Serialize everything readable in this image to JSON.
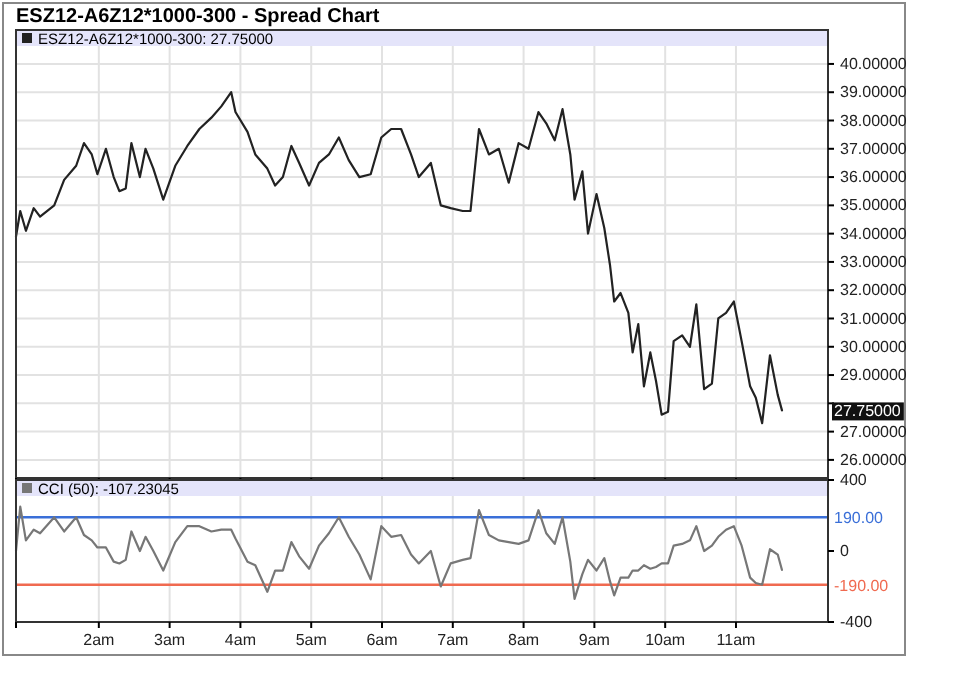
{
  "chart_data": [
    {
      "type": "line",
      "title": "ESZ12-A6Z12*1000-300 - Spread Chart",
      "x": [
        0.83,
        0.89,
        0.97,
        1.08,
        1.17,
        1.37,
        1.51,
        1.68,
        1.79,
        1.9,
        1.98,
        2.1,
        2.21,
        2.29,
        2.38,
        2.46,
        2.58,
        2.66,
        2.77,
        2.91,
        3.08,
        3.25,
        3.42,
        3.59,
        3.73,
        3.87,
        3.93,
        4.1,
        4.21,
        4.38,
        4.49,
        4.6,
        4.72,
        4.83,
        4.97,
        5.11,
        5.25,
        5.39,
        5.53,
        5.68,
        5.84,
        5.99,
        6.13,
        6.27,
        6.41,
        6.52,
        6.69,
        6.83,
        6.97,
        7.14,
        7.25,
        7.37,
        7.51,
        7.65,
        7.79,
        7.93,
        8.07,
        8.21,
        8.32,
        8.44,
        8.55,
        8.66,
        8.72,
        8.83,
        8.91,
        9.03,
        9.14,
        9.22,
        9.28,
        9.37,
        9.48,
        9.54,
        9.62,
        9.7,
        9.79,
        9.87,
        9.95,
        10.04,
        10.12,
        10.24,
        10.35,
        10.44,
        10.55,
        10.66,
        10.75,
        10.86,
        10.97,
        11.08,
        11.2,
        11.28,
        11.37,
        11.48,
        11.59,
        11.65
      ],
      "series": [
        {
          "name": "ESZ12-A6Z12*1000-300: 27.75000",
          "color": "#222222",
          "values": [
            33.9,
            34.8,
            34.1,
            34.9,
            34.6,
            35.0,
            35.9,
            36.4,
            37.2,
            36.8,
            36.1,
            37.0,
            36.0,
            35.5,
            35.6,
            37.2,
            36.0,
            37.0,
            36.3,
            35.2,
            36.4,
            37.1,
            37.7,
            38.1,
            38.5,
            39.0,
            38.3,
            37.6,
            36.8,
            36.3,
            35.7,
            36.0,
            37.1,
            36.5,
            35.7,
            36.5,
            36.8,
            37.4,
            36.6,
            36.0,
            36.1,
            37.4,
            37.7,
            37.7,
            36.8,
            36.0,
            36.5,
            35.0,
            34.9,
            34.8,
            34.8,
            37.7,
            36.8,
            37.0,
            35.8,
            37.2,
            37.0,
            38.3,
            37.9,
            37.3,
            38.4,
            36.8,
            35.2,
            36.2,
            34.0,
            35.4,
            34.2,
            32.9,
            31.6,
            31.9,
            31.2,
            29.8,
            30.8,
            28.6,
            29.8,
            28.8,
            27.6,
            27.7,
            30.2,
            30.4,
            30.0,
            31.5,
            28.5,
            28.7,
            31.0,
            31.2,
            31.6,
            30.2,
            28.6,
            28.2,
            27.3,
            29.7,
            28.3,
            27.75
          ]
        }
      ],
      "xlim": [
        0.83,
        12.3
      ],
      "xticks": [
        0.83,
        2,
        3,
        4,
        5,
        6,
        7,
        8,
        9,
        10,
        11
      ],
      "ylim": [
        25.36,
        41.2
      ],
      "yticks": [
        {
          "value": 26,
          "label": "26.00000"
        },
        {
          "value": 27,
          "label": "27.00000"
        },
        {
          "value": 28,
          "label": null
        },
        {
          "value": 29,
          "label": "29.00000"
        },
        {
          "value": 30,
          "label": "30.00000"
        },
        {
          "value": 31,
          "label": "31.00000"
        },
        {
          "value": 32,
          "label": "32.00000"
        },
        {
          "value": 33,
          "label": "33.00000"
        },
        {
          "value": 34,
          "label": "34.00000"
        },
        {
          "value": 35,
          "label": "35.00000"
        },
        {
          "value": 36,
          "label": "36.00000"
        },
        {
          "value": 37,
          "label": "37.00000"
        },
        {
          "value": 38,
          "label": "38.00000"
        },
        {
          "value": 39,
          "label": "39.00000"
        },
        {
          "value": 40,
          "label": "40.00000"
        }
      ],
      "annotations": [
        "27.75000"
      ],
      "grid": true,
      "legend": "top left",
      "tick_labels": "y"
    },
    {
      "type": "line",
      "x": [
        0.83,
        0.89,
        0.97,
        1.08,
        1.17,
        1.37,
        1.51,
        1.68,
        1.79,
        1.9,
        1.98,
        2.1,
        2.21,
        2.29,
        2.38,
        2.46,
        2.58,
        2.66,
        2.77,
        2.91,
        3.08,
        3.25,
        3.42,
        3.59,
        3.73,
        3.87,
        3.93,
        4.1,
        4.21,
        4.38,
        4.49,
        4.6,
        4.72,
        4.83,
        4.97,
        5.11,
        5.25,
        5.39,
        5.53,
        5.68,
        5.84,
        5.99,
        6.13,
        6.27,
        6.41,
        6.52,
        6.69,
        6.83,
        6.97,
        7.14,
        7.25,
        7.37,
        7.51,
        7.65,
        7.79,
        7.93,
        8.07,
        8.21,
        8.32,
        8.44,
        8.55,
        8.66,
        8.72,
        8.83,
        8.91,
        9.03,
        9.14,
        9.22,
        9.28,
        9.37,
        9.48,
        9.54,
        9.62,
        9.7,
        9.79,
        9.87,
        9.95,
        10.04,
        10.12,
        10.24,
        10.35,
        10.44,
        10.55,
        10.66,
        10.75,
        10.86,
        10.97,
        11.08,
        11.2,
        11.28,
        11.37,
        11.48,
        11.59,
        11.65
      ],
      "series": [
        {
          "name": "CCI (50): -107.23045",
          "color": "#777777",
          "values": [
            0,
            250,
            60,
            120,
            100,
            190,
            110,
            190,
            90,
            60,
            20,
            20,
            -60,
            -70,
            -50,
            110,
            0,
            80,
            0,
            -110,
            50,
            140,
            140,
            110,
            120,
            120,
            70,
            -60,
            -80,
            -230,
            -110,
            -110,
            50,
            -30,
            -100,
            30,
            100,
            190,
            80,
            -20,
            -160,
            140,
            80,
            90,
            -20,
            -70,
            0,
            -200,
            -70,
            -50,
            -40,
            230,
            90,
            60,
            50,
            40,
            60,
            230,
            100,
            40,
            190,
            -60,
            -270,
            -130,
            -50,
            -110,
            -40,
            -170,
            -250,
            -150,
            -150,
            -110,
            -110,
            -80,
            -100,
            -90,
            -70,
            -70,
            30,
            40,
            60,
            140,
            0,
            30,
            80,
            120,
            140,
            30,
            -150,
            -180,
            -190,
            10,
            -20,
            -107
          ]
        }
      ],
      "xlim": [
        0.83,
        12.3
      ],
      "xticks": [
        {
          "value": 0.83,
          "label": null
        },
        {
          "value": 2,
          "label": "2am"
        },
        {
          "value": 3,
          "label": "3am"
        },
        {
          "value": 4,
          "label": "4am"
        },
        {
          "value": 5,
          "label": "5am"
        },
        {
          "value": 6,
          "label": "6am"
        },
        {
          "value": 7,
          "label": "7am"
        },
        {
          "value": 8,
          "label": "8am"
        },
        {
          "value": 9,
          "label": "9am"
        },
        {
          "value": 10,
          "label": "10am"
        },
        {
          "value": 11,
          "label": "11am"
        }
      ],
      "ylim": [
        -400,
        400
      ],
      "yticks": [
        -400,
        0,
        400
      ],
      "ref_lines": [
        {
          "axis": "y",
          "value": 190,
          "label": "190.00",
          "color": "#3a6fd8"
        },
        {
          "axis": "y",
          "value": -190,
          "label": "-190.00",
          "color": "#f06a50"
        }
      ],
      "grid": "x",
      "legend": "top left"
    }
  ]
}
